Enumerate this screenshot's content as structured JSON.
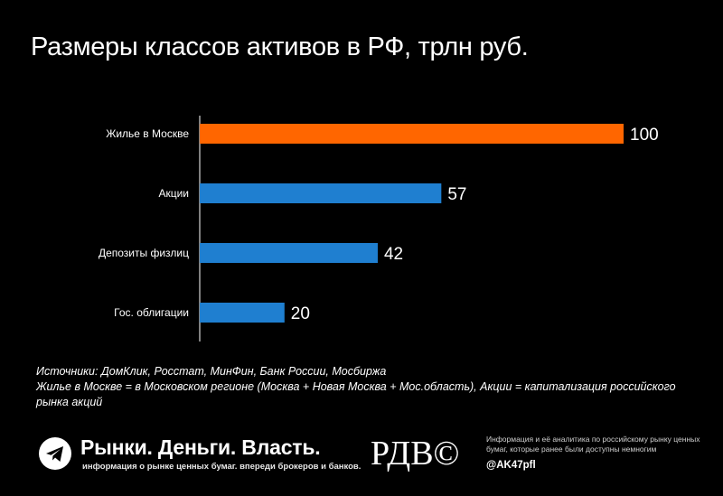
{
  "title": "Размеры классов активов в РФ, трлн руб.",
  "chart_data": {
    "type": "bar",
    "orientation": "horizontal",
    "categories": [
      "Жилье в Москве",
      "Акции",
      "Депозиты физлиц",
      "Гос. облигации"
    ],
    "values": [
      100,
      57,
      42,
      20
    ],
    "bar_colors": [
      "#ff6600",
      "#1f7fd0",
      "#1f7fd0",
      "#1f7fd0"
    ],
    "xlim": [
      0,
      100
    ],
    "grid": false,
    "legend": "none"
  },
  "notes": {
    "line1": "Источники: ДомКлик, Росстат, МинФин, Банк России, Мосбиржа",
    "line2": "Жилье в Москве = в Московском регионе (Москва + Новая Москва + Мос.область), Акции = капитализация российского рынка акций"
  },
  "footer": {
    "brand": "Рынки. Деньги. Власть.",
    "brand_sub": "информация о рынке ценных бумаг. впереди брокеров и банков.",
    "logo_text": "РДВ©",
    "disclaimer": "Информация и её аналитика по российскому рынку ценных бумаг, которые ранее были доступны немногим",
    "handle": "@AK47pfl",
    "icon": "telegram-icon"
  }
}
